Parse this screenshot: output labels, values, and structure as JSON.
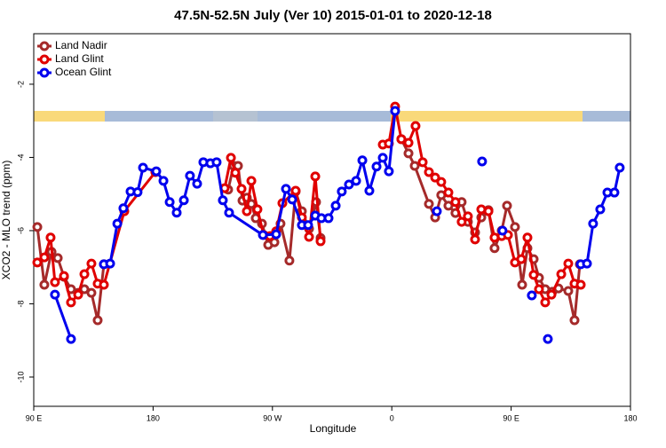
{
  "chart_data": {
    "type": "line",
    "title": "47.5N-52.5N July (Ver 10)   2015-01-01 to 2020-12-18",
    "x_label": "Longitude",
    "y_label": "XCO2 - MLO trend (ppm)",
    "xlim": [
      90,
      540
    ],
    "ylim": [
      -10.8,
      -0.62
    ],
    "xticks": [
      {
        "value": 90,
        "label": "90 E"
      },
      {
        "value": 180,
        "label": "180"
      },
      {
        "value": 270,
        "label": "90 W"
      },
      {
        "value": 360,
        "label": "0"
      },
      {
        "value": 450,
        "label": "90 E"
      },
      {
        "value": 540,
        "label": "180"
      }
    ],
    "yticks": [
      -2,
      -4,
      -6,
      -8,
      -10
    ],
    "legend": "top-left",
    "series": [
      {
        "name": "Land Nadir",
        "color": "#a52a2a",
        "x": [
          92.7,
          98.0,
          103.4,
          108.1,
          112.8,
          118.1,
          123.5,
          128.2,
          133.5,
          138.2,
          142.9,
          190,
          236.6,
          240.7,
          244.0,
          247.4,
          250.7,
          254.1,
          257.4,
          262.1,
          266.8,
          271.5,
          276.1,
          282.8,
          287.5,
          292.2,
          297.6,
          302.9,
          306.3,
          330,
          367.2,
          372.6,
          377.3,
          388.0,
          392.7,
          397.3,
          402.7,
          408.0,
          412.7,
          417.4,
          422.8,
          427.5,
          432.9,
          437.5,
          442.9,
          446.9,
          452.9,
          458.3,
          462.3,
          467.0,
          471.0,
          475.7,
          481.0,
          485.7,
          493.1,
          497.8,
          501.8
        ],
        "values": [
          -5.9,
          -7.48,
          -6.58,
          -6.75,
          -7.26,
          -7.6,
          -7.7,
          -7.6,
          -7.7,
          -8.45,
          -6.92,
          null,
          -4.88,
          -4.23,
          -4.23,
          -5.18,
          -5.1,
          -5.27,
          -5.66,
          -5.81,
          -6.39,
          -6.32,
          -5.81,
          -6.82,
          -4.93,
          -5.47,
          -5.95,
          -5.22,
          -6.2,
          null,
          -3.5,
          -3.89,
          -4.23,
          -5.27,
          -5.64,
          -5.03,
          -5.32,
          -5.52,
          -5.22,
          -5.76,
          -6.05,
          -5.64,
          -5.44,
          -6.48,
          -6.0,
          -5.32,
          -5.9,
          -7.48,
          -6.48,
          -6.78,
          -7.29,
          -7.6,
          -7.67,
          -7.58,
          -7.65,
          -8.45,
          -6.92
        ]
      },
      {
        "name": "Land Glint",
        "color": "#e00000",
        "x": [
          92.7,
          98.0,
          102.7,
          106.0,
          112.8,
          118.1,
          123.5,
          128.2,
          133.5,
          138.2,
          142.9,
          158.3,
          181.7,
          210,
          234.0,
          238.7,
          242.0,
          246.7,
          250.7,
          254.1,
          258.7,
          263.4,
          268.1,
          272.8,
          277.5,
          287.5,
          292.2,
          297.6,
          302.3,
          306.3,
          330,
          353.2,
          357.8,
          362.5,
          367.2,
          372.6,
          377.9,
          383.3,
          388.0,
          392.7,
          397.3,
          402.7,
          408.0,
          412.7,
          417.4,
          422.8,
          427.5,
          432.9,
          437.5,
          442.9,
          447.6,
          452.9,
          457.6,
          462.3,
          467.0,
          471.0,
          475.7,
          480.4,
          487.8,
          493.1,
          497.8,
          502.5
        ],
        "values": [
          -6.87,
          -6.73,
          -6.19,
          -7.41,
          -7.24,
          -7.96,
          -7.75,
          -7.19,
          -6.9,
          -7.45,
          -7.48,
          -5.47,
          -4.4,
          null,
          -4.84,
          -4.01,
          -4.42,
          -4.86,
          -5.47,
          -4.64,
          -5.42,
          -6.12,
          -6.15,
          -6.02,
          -5.25,
          -4.91,
          -5.64,
          -6.17,
          -4.52,
          -6.29,
          null,
          -3.65,
          -3.62,
          -2.61,
          -3.5,
          -3.6,
          -3.14,
          -4.13,
          -4.4,
          -4.55,
          -4.67,
          -4.96,
          -5.22,
          -5.76,
          -5.61,
          -6.24,
          -5.42,
          -5.47,
          -6.19,
          -6.15,
          -6.12,
          -6.87,
          -6.78,
          -6.19,
          -7.21,
          -7.6,
          -7.96,
          -7.75,
          -7.19,
          -6.9,
          -7.45,
          -7.48
        ]
      },
      {
        "name": "Ocean Glint",
        "color": "#0000ee",
        "x": [
          106.0,
          118.1,
          130,
          142.9,
          147.6,
          153.0,
          157.6,
          163.0,
          168.3,
          172.4,
          182.4,
          187.8,
          192.5,
          197.8,
          203.2,
          207.8,
          213.2,
          217.9,
          223.2,
          227.9,
          232.6,
          237.3,
          262.8,
          272.8,
          280.2,
          284.9,
          292.2,
          296.9,
          302.3,
          306.9,
          312.3,
          317.7,
          322.3,
          327.7,
          333.1,
          337.8,
          343.1,
          348.5,
          353.2,
          357.8,
          362.5,
          380,
          394.0,
          400,
          428.1,
          435,
          443.5,
          455,
          465.6,
          470,
          477.7,
          490,
          502.5,
          507.2,
          511.8,
          517.2,
          522.6,
          527.9,
          531.9
        ],
        "values": [
          -7.75,
          -8.96,
          null,
          -6.92,
          -6.9,
          -5.81,
          -5.39,
          -4.93,
          -4.95,
          -4.28,
          -4.38,
          -4.64,
          -5.22,
          -5.51,
          -5.17,
          -4.5,
          -4.72,
          -4.13,
          -4.16,
          -4.13,
          -5.17,
          -5.51,
          -6.12,
          -6.1,
          -4.86,
          -5.15,
          -5.85,
          -5.85,
          -5.59,
          -5.66,
          -5.66,
          -5.32,
          -4.93,
          -4.74,
          -4.64,
          -4.08,
          -4.91,
          -4.25,
          -4.01,
          -4.38,
          -2.73,
          null,
          -5.47,
          null,
          -4.11,
          null,
          -6.0,
          null,
          -7.77,
          null,
          -8.96,
          null,
          -6.92,
          -6.9,
          -5.81,
          -5.42,
          -4.96,
          -4.96,
          -4.28
        ]
      }
    ]
  }
}
